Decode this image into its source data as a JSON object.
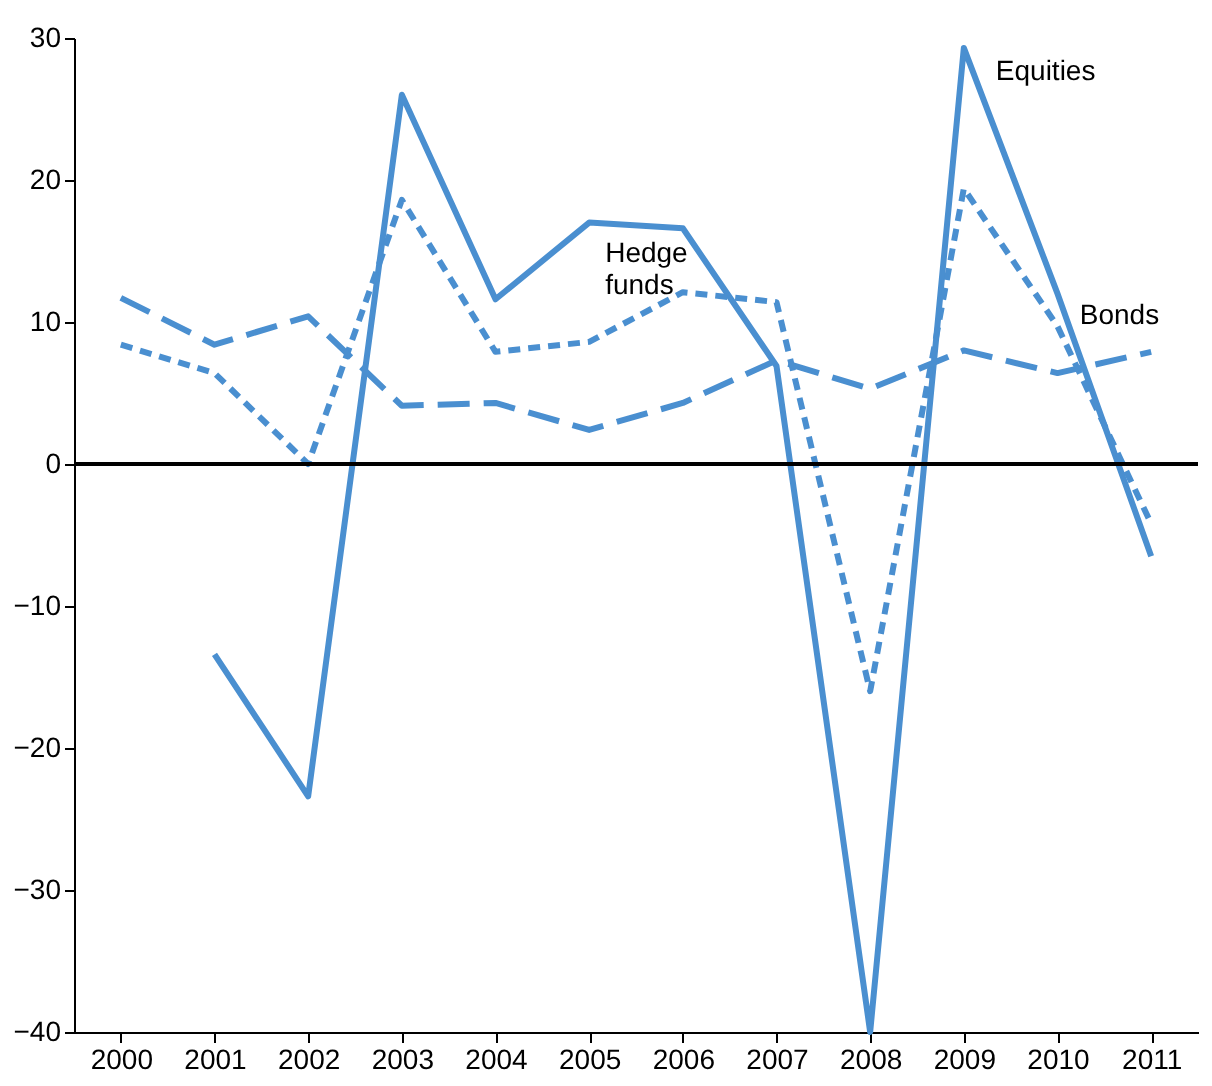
{
  "chart_data": {
    "type": "line",
    "categories": [
      "2000",
      "2001",
      "2002",
      "2003",
      "2004",
      "2005",
      "2006",
      "2007",
      "2008",
      "2009",
      "2010",
      "2011"
    ],
    "series": [
      {
        "name": "Equities",
        "color": "#4a8fd0",
        "line_style": "solid",
        "values": [
          null,
          -13.4,
          -23.4,
          26,
          11.6,
          17,
          16.6,
          6.9,
          -40,
          29.3,
          12,
          -6.5
        ]
      },
      {
        "name": "Hedge funds",
        "color": "#4a8fd0",
        "line_style": "dotted",
        "values": [
          8.4,
          6.4,
          0,
          18.6,
          7.9,
          8.6,
          12.1,
          11.4,
          -16,
          19.4,
          9.7,
          -4.2
        ]
      },
      {
        "name": "Bonds",
        "color": "#4a8fd0",
        "line_style": "dashed",
        "values": [
          11.7,
          8.4,
          10.4,
          4.1,
          4.3,
          2.4,
          4.3,
          7.3,
          5.3,
          8,
          6.4,
          7.9
        ]
      }
    ],
    "ylim": [
      -40,
      30
    ],
    "yticks": [
      -40,
      -30,
      -20,
      -10,
      0,
      10,
      20,
      30
    ],
    "ref_lines": [
      {
        "axis": "y",
        "value": 0,
        "color": "#000000"
      }
    ],
    "grid": false
  }
}
